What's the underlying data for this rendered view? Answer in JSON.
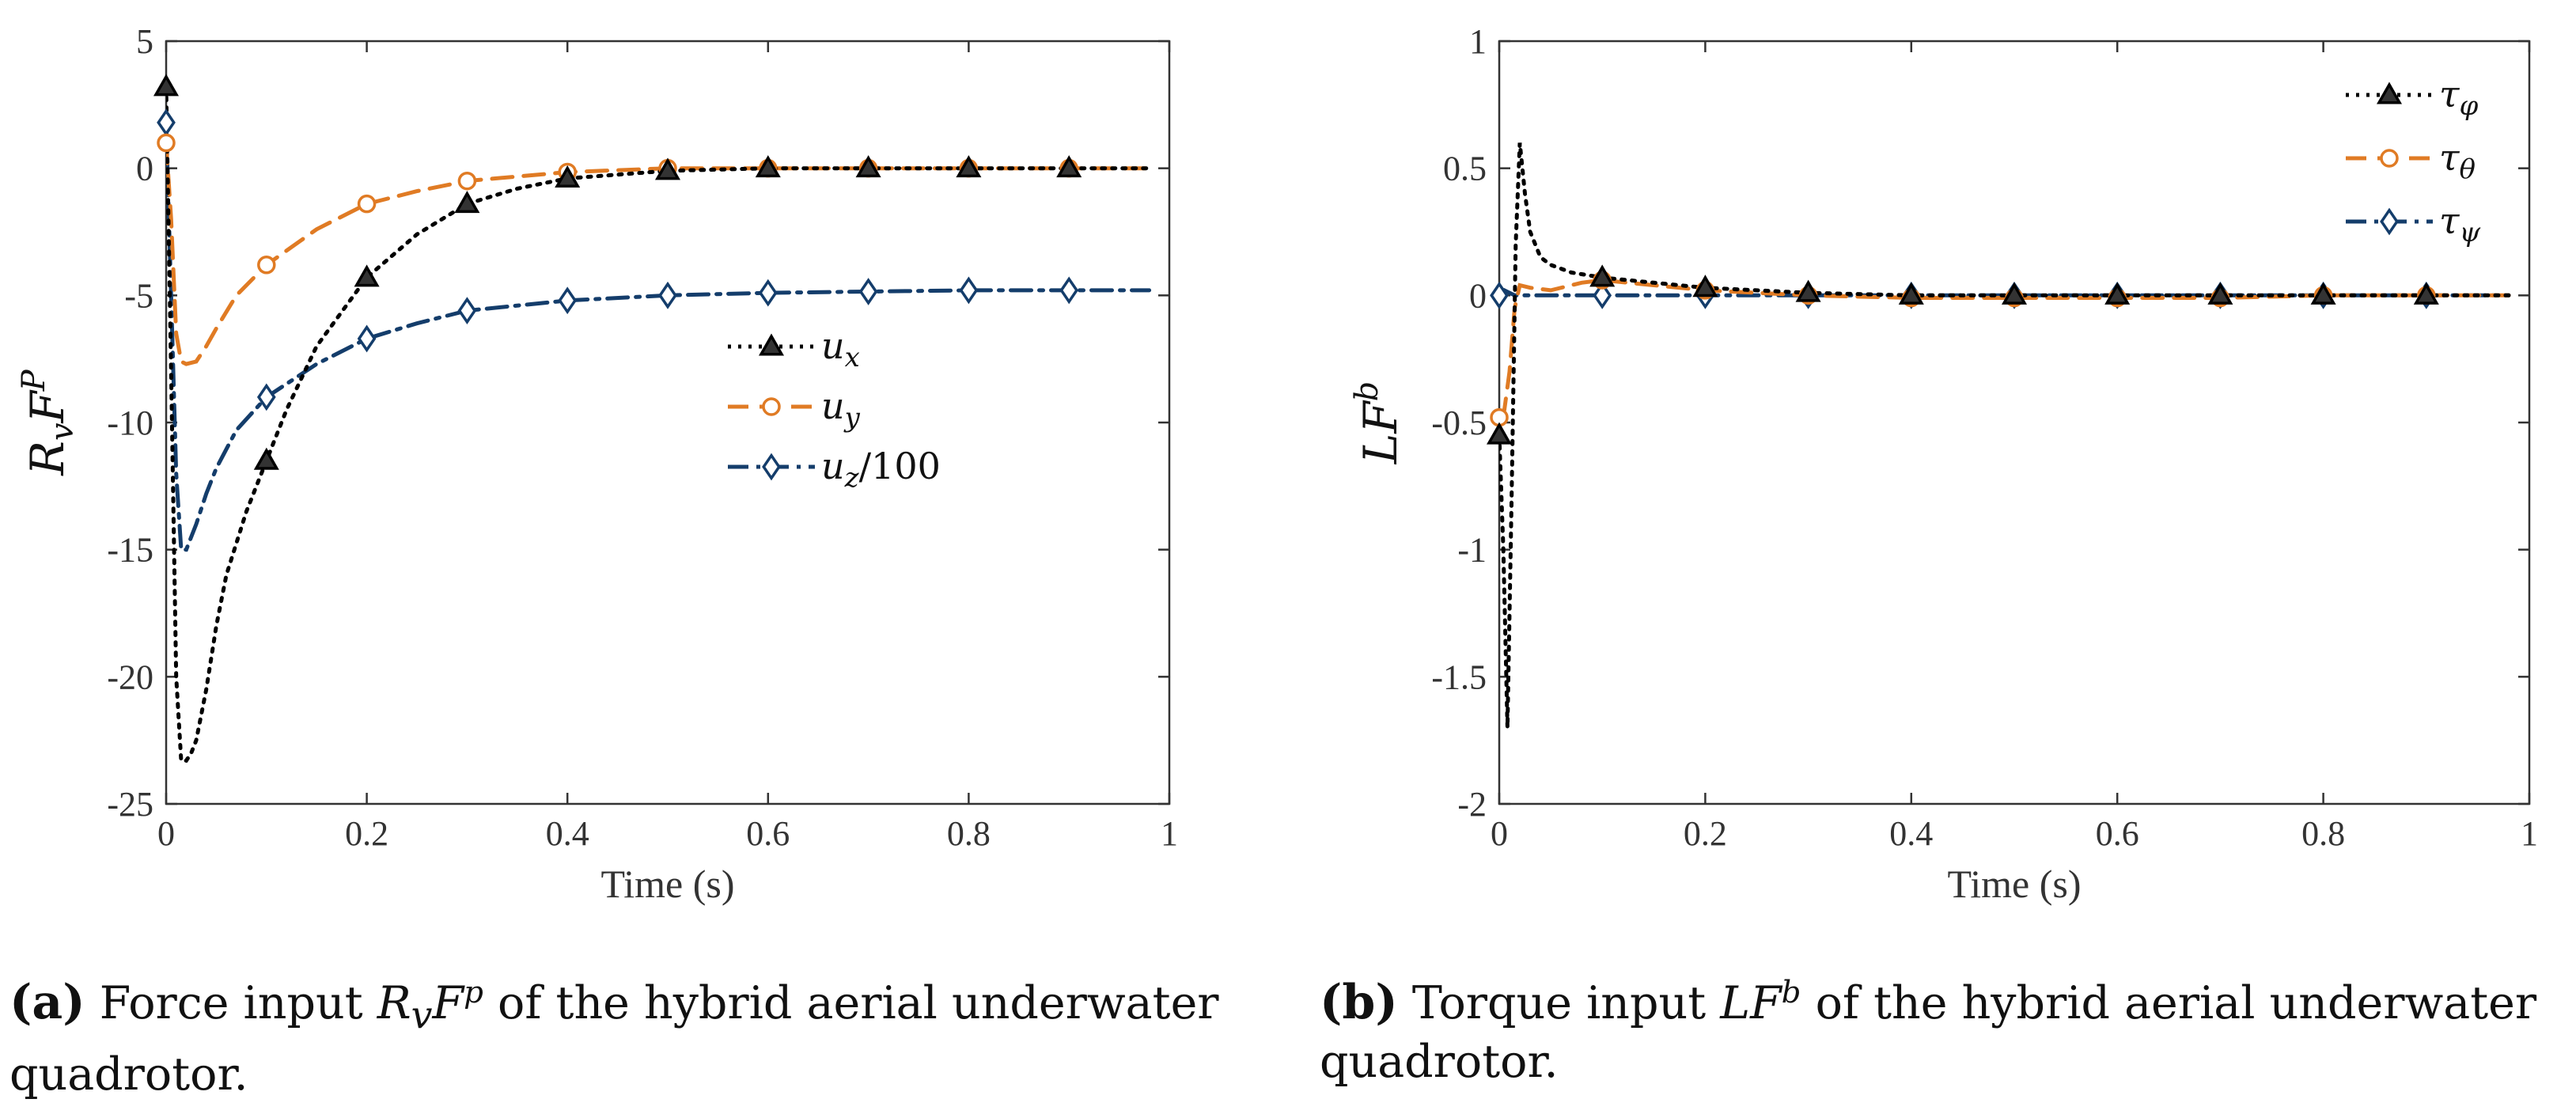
{
  "chart_data": [
    {
      "type": "line",
      "panel": "a",
      "xlabel": "Time (s)",
      "ylabel": "R_v F^P",
      "xlim": [
        0,
        1
      ],
      "ylim": [
        -25,
        5
      ],
      "xticks": [
        0,
        0.2,
        0.4,
        0.6,
        0.8,
        1
      ],
      "xtick_labels": [
        "0",
        "0.2",
        "0.4",
        "0.6",
        "0.8",
        "1"
      ],
      "yticks": [
        5,
        0,
        -5,
        -10,
        -15,
        -20,
        -25
      ],
      "ytick_labels": [
        "5",
        "0",
        "-5",
        "-10",
        "-15",
        "-20",
        "-25"
      ],
      "grid": false,
      "legend_position": "right-middle",
      "series": [
        {
          "name": "u_x",
          "sub": "x",
          "suffix": "",
          "color": "#000000",
          "dash": "dotted",
          "marker": "triangle",
          "x": [
            0,
            0.005,
            0.01,
            0.015,
            0.02,
            0.025,
            0.03,
            0.04,
            0.05,
            0.06,
            0.08,
            0.1,
            0.12,
            0.15,
            0.2,
            0.25,
            0.3,
            0.35,
            0.4,
            0.5,
            0.6,
            0.7,
            0.8,
            0.9,
            0.98
          ],
          "y": [
            3.2,
            -8,
            -20,
            -23.3,
            -23.3,
            -23,
            -22.5,
            -20.5,
            -18,
            -16,
            -13.5,
            -11.5,
            -9.5,
            -7,
            -4.3,
            -2.6,
            -1.4,
            -0.8,
            -0.4,
            -0.1,
            0,
            0,
            0,
            0,
            0
          ],
          "marker_x": [
            0,
            0.1,
            0.2,
            0.3,
            0.4,
            0.5,
            0.6,
            0.7,
            0.8,
            0.9
          ]
        },
        {
          "name": "u_y",
          "sub": "y",
          "suffix": "",
          "color": "#E07B24",
          "dash": "dashed",
          "marker": "circle",
          "x": [
            0,
            0.005,
            0.01,
            0.015,
            0.02,
            0.03,
            0.04,
            0.05,
            0.07,
            0.1,
            0.15,
            0.2,
            0.25,
            0.3,
            0.4,
            0.5,
            0.6,
            0.7,
            0.8,
            0.9,
            0.98
          ],
          "y": [
            1,
            -2,
            -6.5,
            -7.6,
            -7.7,
            -7.6,
            -7,
            -6.3,
            -5,
            -3.8,
            -2.4,
            -1.4,
            -0.9,
            -0.5,
            -0.15,
            0,
            0,
            0,
            0,
            0,
            0
          ],
          "marker_x": [
            0,
            0.1,
            0.2,
            0.3,
            0.4,
            0.5,
            0.6,
            0.7,
            0.8,
            0.9
          ]
        },
        {
          "name": "u_z/100",
          "sub": "z",
          "suffix": "/100",
          "color": "#143D6B",
          "dash": "dashdot",
          "marker": "diamond",
          "x": [
            0,
            0.005,
            0.01,
            0.015,
            0.02,
            0.03,
            0.04,
            0.05,
            0.07,
            0.1,
            0.15,
            0.2,
            0.25,
            0.3,
            0.4,
            0.5,
            0.6,
            0.7,
            0.8,
            0.9,
            0.98
          ],
          "y": [
            1.8,
            -5,
            -12,
            -15,
            -15,
            -14,
            -12.8,
            -11.8,
            -10.3,
            -9,
            -7.7,
            -6.7,
            -6.1,
            -5.6,
            -5.2,
            -5,
            -4.9,
            -4.85,
            -4.8,
            -4.8,
            -4.8
          ],
          "marker_x": [
            0,
            0.1,
            0.2,
            0.3,
            0.4,
            0.5,
            0.6,
            0.7,
            0.8,
            0.9
          ]
        }
      ]
    },
    {
      "type": "line",
      "panel": "b",
      "xlabel": "Time (s)",
      "ylabel": "LF^b",
      "xlim": [
        0,
        1
      ],
      "ylim": [
        -2,
        1
      ],
      "xticks": [
        0,
        0.2,
        0.4,
        0.6,
        0.8,
        1
      ],
      "xtick_labels": [
        "0",
        "0.2",
        "0.4",
        "0.6",
        "0.8",
        "1"
      ],
      "yticks": [
        1,
        0.5,
        0,
        -0.5,
        -1,
        -1.5,
        -2
      ],
      "ytick_labels": [
        "1",
        "0.5",
        "0",
        "-0.5",
        "-1",
        "-1.5",
        "-2"
      ],
      "grid": false,
      "legend_position": "top-right",
      "series": [
        {
          "name": "τ_φ",
          "sub": "φ",
          "suffix": "",
          "color": "#000000",
          "dash": "dotted",
          "marker": "triangle",
          "x": [
            0,
            0.004,
            0.008,
            0.012,
            0.016,
            0.02,
            0.025,
            0.03,
            0.04,
            0.05,
            0.07,
            0.1,
            0.15,
            0.2,
            0.3,
            0.4,
            0.5,
            0.6,
            0.7,
            0.8,
            0.9,
            0.98
          ],
          "y": [
            -0.55,
            -1.0,
            -1.7,
            -0.8,
            0.2,
            0.6,
            0.4,
            0.25,
            0.15,
            0.12,
            0.09,
            0.07,
            0.05,
            0.03,
            0.01,
            0,
            0,
            0,
            0,
            0,
            0,
            0
          ],
          "marker_x": [
            0,
            0.1,
            0.2,
            0.3,
            0.4,
            0.5,
            0.6,
            0.7,
            0.8,
            0.9
          ]
        },
        {
          "name": "τ_θ",
          "sub": "θ",
          "suffix": "",
          "color": "#E07B24",
          "dash": "dashed",
          "marker": "circle",
          "x": [
            0,
            0.005,
            0.01,
            0.015,
            0.02,
            0.03,
            0.05,
            0.08,
            0.1,
            0.15,
            0.2,
            0.3,
            0.4,
            0.5,
            0.6,
            0.7,
            0.8,
            0.9,
            0.98
          ],
          "y": [
            -0.48,
            -0.45,
            -0.3,
            -0.05,
            0.04,
            0.03,
            0.02,
            0.05,
            0.06,
            0.04,
            0.02,
            0,
            -0.01,
            -0.01,
            -0.01,
            -0.01,
            0,
            0,
            0
          ],
          "marker_x": [
            0,
            0.1,
            0.2,
            0.3,
            0.4,
            0.5,
            0.6,
            0.7,
            0.8,
            0.9
          ]
        },
        {
          "name": "τ_ψ",
          "sub": "ψ",
          "suffix": "",
          "color": "#143D6B",
          "dash": "dashdot",
          "marker": "diamond",
          "x": [
            0,
            0.005,
            0.01,
            0.015,
            0.02,
            0.05,
            0.1,
            0.2,
            0.3,
            0.4,
            0.5,
            0.6,
            0.7,
            0.8,
            0.9,
            0.98
          ],
          "y": [
            0,
            0.02,
            0.01,
            0,
            0,
            0,
            0,
            0,
            0,
            0,
            0,
            0,
            0,
            0,
            0,
            0
          ],
          "marker_x": [
            0,
            0.1,
            0.2,
            0.3,
            0.4,
            0.5,
            0.6,
            0.7,
            0.8,
            0.9
          ]
        }
      ]
    }
  ],
  "captions": {
    "a": {
      "label": "(a)",
      "before": "Force input",
      "math_main": "R",
      "math_sub": "v",
      "math_main2": "F",
      "math_sup": "p",
      "after": "of the hybrid aerial underwater",
      "line2": "quadrotor."
    },
    "b": {
      "label": "(b)",
      "before": "Torque input",
      "math_main": "LF",
      "math_sup": "b",
      "after": "of the hybrid aerial underwater",
      "line2": "quadrotor."
    }
  }
}
